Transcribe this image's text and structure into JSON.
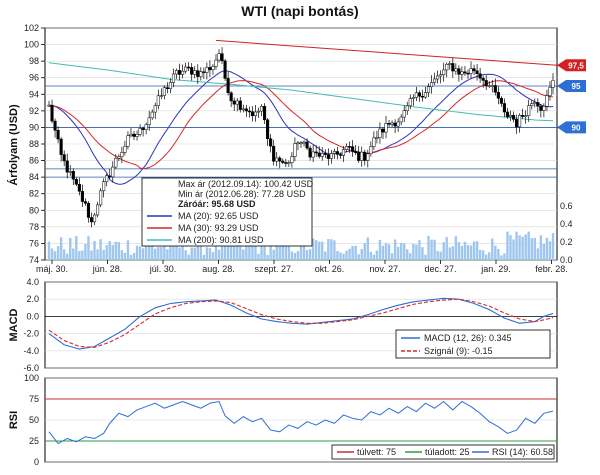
{
  "chart_data": [
    {
      "panel": "price",
      "type": "candlestick",
      "title": "WTI (napi bontás)",
      "ylabel": "Árfolyam (USD)",
      "ylim": [
        74,
        102
      ],
      "yticks": [
        74,
        76,
        78,
        80,
        82,
        84,
        86,
        88,
        90,
        92,
        94,
        96,
        98,
        100,
        102
      ],
      "volume_ticks": [
        "0.0",
        "0.2",
        "0.4",
        "0.6"
      ],
      "volume_max": 0.6,
      "x_ticks": [
        "máj. 30.",
        "jún. 28.",
        "júl. 30.",
        "aug. 28.",
        "szept. 27.",
        "okt. 26.",
        "nov. 27.",
        "dec. 27.",
        "jan. 29.",
        "febr. 28."
      ],
      "close_anchors": [
        [
          0,
          92.5
        ],
        [
          4,
          86.5
        ],
        [
          8,
          83.5
        ],
        [
          12,
          80.5
        ],
        [
          14,
          78.5
        ],
        [
          16,
          81.0
        ],
        [
          18,
          83.0
        ],
        [
          22,
          86.0
        ],
        [
          26,
          88.5
        ],
        [
          30,
          89.5
        ],
        [
          34,
          92.0
        ],
        [
          38,
          94.5
        ],
        [
          42,
          96.5
        ],
        [
          46,
          97.0
        ],
        [
          50,
          96.5
        ],
        [
          54,
          97.5
        ],
        [
          56,
          99.0
        ],
        [
          58,
          96.0
        ],
        [
          60,
          93.5
        ],
        [
          64,
          92.5
        ],
        [
          68,
          91.5
        ],
        [
          70,
          92.5
        ],
        [
          72,
          88.5
        ],
        [
          74,
          86.5
        ],
        [
          78,
          85.5
        ],
        [
          80,
          86.5
        ],
        [
          82,
          88.5
        ],
        [
          86,
          87.0
        ],
        [
          90,
          86.5
        ],
        [
          94,
          86.5
        ],
        [
          98,
          87.5
        ],
        [
          102,
          86.5
        ],
        [
          104,
          86.5
        ],
        [
          108,
          89.0
        ],
        [
          112,
          90.5
        ],
        [
          116,
          91.0
        ],
        [
          120,
          93.5
        ],
        [
          124,
          94.5
        ],
        [
          128,
          96.0
        ],
        [
          132,
          97.5
        ],
        [
          136,
          96.5
        ],
        [
          140,
          97.0
        ],
        [
          144,
          95.5
        ],
        [
          148,
          93.5
        ],
        [
          150,
          91.5
        ],
        [
          152,
          91.5
        ],
        [
          154,
          90.5
        ],
        [
          156,
          91.5
        ],
        [
          160,
          93.5
        ],
        [
          162,
          92.5
        ],
        [
          164,
          93.5
        ],
        [
          166,
          95.68
        ]
      ],
      "series": [
        {
          "name": "MA (20)",
          "period": 20,
          "color": "#2b35b5"
        },
        {
          "name": "MA (30)",
          "period": 30,
          "color": "#d42a2a"
        },
        {
          "name": "MA (200)",
          "period": 200,
          "color": "#3fbfb0",
          "values": [
            [
              0,
              97.8
            ],
            [
              20,
              96.9
            ],
            [
              40,
              95.8
            ],
            [
              60,
              95.2
            ],
            [
              80,
              94.5
            ],
            [
              100,
              93.5
            ],
            [
              120,
              92.5
            ],
            [
              140,
              91.6
            ],
            [
              160,
              90.9
            ],
            [
              166,
              90.8
            ]
          ]
        }
      ],
      "horizontal_lines": [
        95,
        90,
        85,
        84
      ],
      "trendline": [
        [
          55,
          100.5
        ],
        [
          166,
          97.5
        ]
      ],
      "price_tags": [
        {
          "label": "97,5",
          "value": 97.5,
          "color": "#d42020"
        },
        {
          "label": "95",
          "value": 95,
          "color": "#2e6fd6"
        },
        {
          "label": "90",
          "value": 90,
          "color": "#2e6fd6"
        }
      ],
      "info_box": {
        "max_label": "Max ár (2012.09.14): 100.42 USD",
        "min_label": "Min ár (2012.06.28): 77.28 USD",
        "close_label": "Záróár: 95.68 USD",
        "ma20_label": "MA (20): 92.65 USD",
        "ma30_label": "MA (30): 93.29 USD",
        "ma200_label": "MA (200): 90.81 USD"
      }
    },
    {
      "panel": "macd",
      "type": "line",
      "ylabel": "MACD",
      "ylim": [
        -6,
        4
      ],
      "yticks": [
        "4.0",
        "2.0",
        "0.0",
        "-2.0",
        "-4.0",
        "-6.0"
      ],
      "series": [
        {
          "name": "MACD (12, 26): 0.345",
          "color": "#2e6fd6",
          "values": [
            [
              0,
              -2.0
            ],
            [
              5,
              -3.3
            ],
            [
              10,
              -3.8
            ],
            [
              15,
              -3.5
            ],
            [
              20,
              -2.5
            ],
            [
              25,
              -1.5
            ],
            [
              30,
              0.0
            ],
            [
              35,
              1.0
            ],
            [
              40,
              1.5
            ],
            [
              45,
              1.7
            ],
            [
              50,
              1.8
            ],
            [
              55,
              1.9
            ],
            [
              60,
              1.3
            ],
            [
              65,
              0.4
            ],
            [
              70,
              -0.3
            ],
            [
              75,
              -0.6
            ],
            [
              80,
              -0.8
            ],
            [
              85,
              -0.9
            ],
            [
              90,
              -0.7
            ],
            [
              95,
              -0.5
            ],
            [
              100,
              -0.3
            ],
            [
              105,
              0.2
            ],
            [
              110,
              0.8
            ],
            [
              115,
              1.3
            ],
            [
              120,
              1.7
            ],
            [
              125,
              1.9
            ],
            [
              130,
              2.1
            ],
            [
              135,
              2.0
            ],
            [
              140,
              1.5
            ],
            [
              145,
              0.8
            ],
            [
              150,
              -0.2
            ],
            [
              155,
              -0.8
            ],
            [
              160,
              -0.6
            ],
            [
              163,
              0.0
            ],
            [
              166,
              0.345
            ]
          ]
        },
        {
          "name": "Szignál (9): -0.15",
          "color": "#d42a2a",
          "dashed": true,
          "values": [
            [
              0,
              -1.6
            ],
            [
              5,
              -2.8
            ],
            [
              10,
              -3.5
            ],
            [
              15,
              -3.6
            ],
            [
              20,
              -3.0
            ],
            [
              25,
              -2.1
            ],
            [
              30,
              -0.9
            ],
            [
              35,
              0.3
            ],
            [
              40,
              1.0
            ],
            [
              45,
              1.5
            ],
            [
              50,
              1.7
            ],
            [
              55,
              1.8
            ],
            [
              60,
              1.6
            ],
            [
              65,
              0.9
            ],
            [
              70,
              0.2
            ],
            [
              75,
              -0.3
            ],
            [
              80,
              -0.6
            ],
            [
              85,
              -0.8
            ],
            [
              90,
              -0.8
            ],
            [
              95,
              -0.6
            ],
            [
              100,
              -0.4
            ],
            [
              105,
              0.0
            ],
            [
              110,
              0.4
            ],
            [
              115,
              0.9
            ],
            [
              120,
              1.4
            ],
            [
              125,
              1.7
            ],
            [
              130,
              1.9
            ],
            [
              135,
              2.0
            ],
            [
              140,
              1.7
            ],
            [
              145,
              1.2
            ],
            [
              150,
              0.4
            ],
            [
              155,
              -0.3
            ],
            [
              160,
              -0.6
            ],
            [
              163,
              -0.4
            ],
            [
              166,
              -0.15
            ]
          ]
        }
      ]
    },
    {
      "panel": "rsi",
      "type": "line",
      "ylabel": "RSI",
      "ylim": [
        0,
        100
      ],
      "yticks": [
        "100",
        "75",
        "50",
        "25",
        "0"
      ],
      "series": [
        {
          "name": "RSI (14): 60.58",
          "color": "#2e6fd6",
          "values": [
            [
              0,
              36
            ],
            [
              3,
              22
            ],
            [
              6,
              28
            ],
            [
              9,
              24
            ],
            [
              12,
              30
            ],
            [
              15,
              28
            ],
            [
              18,
              34
            ],
            [
              20,
              46
            ],
            [
              23,
              58
            ],
            [
              26,
              54
            ],
            [
              29,
              62
            ],
            [
              32,
              66
            ],
            [
              35,
              70
            ],
            [
              38,
              64
            ],
            [
              41,
              68
            ],
            [
              44,
              72
            ],
            [
              47,
              68
            ],
            [
              50,
              64
            ],
            [
              53,
              70
            ],
            [
              56,
              72
            ],
            [
              58,
              55
            ],
            [
              61,
              46
            ],
            [
              64,
              54
            ],
            [
              67,
              48
            ],
            [
              70,
              52
            ],
            [
              73,
              38
            ],
            [
              76,
              36
            ],
            [
              79,
              44
            ],
            [
              82,
              40
            ],
            [
              85,
              48
            ],
            [
              88,
              44
            ],
            [
              91,
              50
            ],
            [
              94,
              46
            ],
            [
              97,
              56
            ],
            [
              100,
              52
            ],
            [
              103,
              50
            ],
            [
              106,
              60
            ],
            [
              109,
              56
            ],
            [
              112,
              64
            ],
            [
              115,
              58
            ],
            [
              118,
              66
            ],
            [
              121,
              60
            ],
            [
              124,
              70
            ],
            [
              127,
              64
            ],
            [
              130,
              72
            ],
            [
              133,
              62
            ],
            [
              136,
              72
            ],
            [
              139,
              66
            ],
            [
              142,
              58
            ],
            [
              145,
              48
            ],
            [
              148,
              42
            ],
            [
              151,
              34
            ],
            [
              154,
              38
            ],
            [
              157,
              52
            ],
            [
              160,
              46
            ],
            [
              163,
              58
            ],
            [
              166,
              60.58
            ]
          ]
        }
      ],
      "hlines": [
        {
          "name": "túlvett: 75",
          "value": 75,
          "color": "#c83030"
        },
        {
          "name": "túladott: 25",
          "value": 25,
          "color": "#2e9b40"
        }
      ]
    }
  ]
}
